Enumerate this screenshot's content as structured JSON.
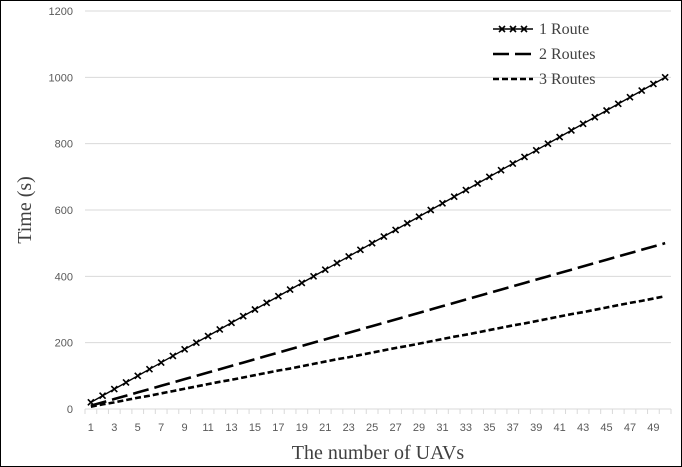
{
  "chart_data": {
    "type": "line",
    "title": "",
    "xlabel": "The number of UAVs",
    "ylabel": "Time  (s)",
    "x": [
      1,
      2,
      3,
      4,
      5,
      6,
      7,
      8,
      9,
      10,
      11,
      12,
      13,
      14,
      15,
      16,
      17,
      18,
      19,
      20,
      21,
      22,
      23,
      24,
      25,
      26,
      27,
      28,
      29,
      30,
      31,
      32,
      33,
      34,
      35,
      36,
      37,
      38,
      39,
      40,
      41,
      42,
      43,
      44,
      45,
      46,
      47,
      48,
      49,
      50
    ],
    "xticks": [
      1,
      3,
      5,
      7,
      9,
      11,
      13,
      15,
      17,
      19,
      21,
      23,
      25,
      27,
      29,
      31,
      33,
      35,
      37,
      39,
      41,
      43,
      45,
      47,
      49
    ],
    "ylim": [
      0,
      1200
    ],
    "yticks": [
      0,
      200,
      400,
      600,
      800,
      1000,
      1200
    ],
    "grid": "horizontal",
    "legend_position": "top-right",
    "series": [
      {
        "name": "1 Route",
        "per_uav": 20,
        "values": [
          20,
          40,
          60,
          80,
          100,
          120,
          140,
          160,
          180,
          200,
          220,
          240,
          260,
          280,
          300,
          320,
          340,
          360,
          380,
          400,
          420,
          440,
          460,
          480,
          500,
          520,
          540,
          560,
          580,
          600,
          620,
          640,
          660,
          680,
          700,
          720,
          740,
          760,
          780,
          800,
          820,
          840,
          860,
          880,
          900,
          920,
          940,
          960,
          980,
          1000
        ]
      },
      {
        "name": "2 Routes",
        "values": [
          10,
          20,
          30,
          40,
          50,
          60,
          70,
          80,
          90,
          100,
          110,
          120,
          130,
          140,
          150,
          160,
          170,
          180,
          190,
          200,
          210,
          220,
          230,
          240,
          250,
          260,
          270,
          280,
          290,
          300,
          310,
          320,
          330,
          340,
          350,
          360,
          370,
          380,
          390,
          400,
          410,
          420,
          430,
          440,
          450,
          460,
          470,
          480,
          490,
          500
        ]
      },
      {
        "name": "3 Routes",
        "values": [
          7,
          14,
          20,
          27,
          34,
          40,
          47,
          54,
          61,
          68,
          75,
          82,
          88,
          95,
          102,
          109,
          116,
          122,
          129,
          136,
          143,
          150,
          156,
          163,
          170,
          177,
          184,
          190,
          197,
          204,
          211,
          218,
          224,
          231,
          238,
          245,
          252,
          258,
          265,
          272,
          279,
          286,
          292,
          299,
          306,
          313,
          320,
          326,
          333,
          340
        ]
      }
    ],
    "colors": {
      "line": "#000000",
      "grid": "#d9d9d9",
      "tick_text": "#595959",
      "title_text": "#404040"
    }
  }
}
